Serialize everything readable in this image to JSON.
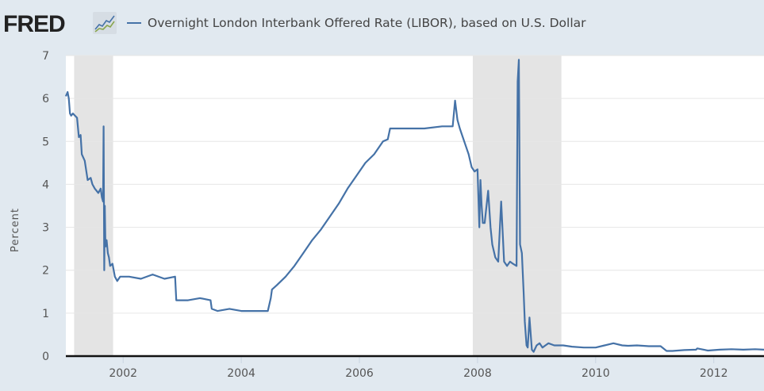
{
  "header": {
    "logo": "FRED",
    "legend_label": "Overnight London Interbank Offered Rate (LIBOR), based on U.S. Dollar",
    "series_color": "#4572a7"
  },
  "chart_data": {
    "type": "line",
    "title": "Overnight London Interbank Offered Rate (LIBOR), based on U.S. Dollar",
    "xlabel": "",
    "ylabel": "Percent",
    "ylim": [
      0,
      7
    ],
    "xlim": [
      2001.03,
      2012.85
    ],
    "yticks": [
      "0",
      "1",
      "2",
      "3",
      "4",
      "5",
      "6",
      "7"
    ],
    "xticks": [
      "2002",
      "2004",
      "2006",
      "2008",
      "2010",
      "2012"
    ],
    "grid": true,
    "legend_position": "top",
    "recessions": [
      [
        2001.17,
        2001.83
      ],
      [
        2007.92,
        2009.42
      ]
    ],
    "series": [
      {
        "name": "Overnight London Interbank Offered Rate (LIBOR), based on U.S. Dollar",
        "x": [
          2001.03,
          2001.06,
          2001.08,
          2001.1,
          2001.12,
          2001.15,
          2001.22,
          2001.25,
          2001.28,
          2001.3,
          2001.35,
          2001.4,
          2001.45,
          2001.48,
          2001.52,
          2001.55,
          2001.58,
          2001.62,
          2001.64,
          2001.66,
          2001.67,
          2001.68,
          2001.69,
          2001.7,
          2001.72,
          2001.74,
          2001.76,
          2001.78,
          2001.82,
          2001.86,
          2001.9,
          2001.95,
          2002.1,
          2002.3,
          2002.5,
          2002.7,
          2002.88,
          2002.9,
          2003.1,
          2003.3,
          2003.48,
          2003.5,
          2003.6,
          2003.8,
          2004.0,
          2004.2,
          2004.45,
          2004.5,
          2004.52,
          2004.6,
          2004.75,
          2004.9,
          2005.05,
          2005.2,
          2005.35,
          2005.5,
          2005.65,
          2005.8,
          2005.95,
          2006.1,
          2006.25,
          2006.4,
          2006.48,
          2006.52,
          2006.8,
          2007.1,
          2007.4,
          2007.58,
          2007.62,
          2007.66,
          2007.7,
          2007.75,
          2007.8,
          2007.85,
          2007.9,
          2007.95,
          2008.0,
          2008.03,
          2008.05,
          2008.07,
          2008.09,
          2008.12,
          2008.18,
          2008.22,
          2008.25,
          2008.3,
          2008.35,
          2008.4,
          2008.45,
          2008.5,
          2008.55,
          2008.6,
          2008.66,
          2008.68,
          2008.7,
          2008.72,
          2008.75,
          2008.78,
          2008.8,
          2008.83,
          2008.85,
          2008.88,
          2008.92,
          2008.95,
          2009.0,
          2009.05,
          2009.1,
          2009.15,
          2009.2,
          2009.3,
          2009.45,
          2009.6,
          2009.8,
          2010.0,
          2010.15,
          2010.3,
          2010.45,
          2010.55,
          2010.7,
          2010.9,
          2011.1,
          2011.2,
          2011.3,
          2011.5,
          2011.7,
          2011.72,
          2011.9,
          2012.1,
          2012.3,
          2012.5,
          2012.7,
          2012.85
        ],
        "values": [
          6.05,
          6.15,
          6.0,
          5.65,
          5.6,
          5.65,
          5.55,
          5.1,
          5.15,
          4.7,
          4.55,
          4.1,
          4.15,
          4.0,
          3.9,
          3.85,
          3.8,
          3.9,
          3.7,
          3.6,
          5.35,
          2.0,
          3.5,
          2.55,
          2.7,
          2.4,
          2.3,
          2.1,
          2.15,
          1.85,
          1.75,
          1.85,
          1.85,
          1.8,
          1.9,
          1.8,
          1.85,
          1.3,
          1.3,
          1.35,
          1.3,
          1.1,
          1.05,
          1.1,
          1.05,
          1.05,
          1.05,
          1.35,
          1.55,
          1.65,
          1.85,
          2.1,
          2.4,
          2.7,
          2.95,
          3.25,
          3.55,
          3.9,
          4.2,
          4.5,
          4.7,
          5.0,
          5.05,
          5.3,
          5.3,
          5.3,
          5.35,
          5.35,
          5.95,
          5.5,
          5.3,
          5.1,
          4.9,
          4.7,
          4.4,
          4.3,
          4.35,
          3.0,
          4.1,
          3.5,
          3.1,
          3.1,
          3.85,
          3.0,
          2.6,
          2.3,
          2.2,
          3.6,
          2.2,
          2.1,
          2.2,
          2.15,
          2.1,
          6.4,
          6.9,
          2.6,
          2.4,
          1.5,
          0.8,
          0.25,
          0.2,
          0.9,
          0.15,
          0.1,
          0.25,
          0.3,
          0.2,
          0.25,
          0.3,
          0.25,
          0.25,
          0.22,
          0.2,
          0.2,
          0.25,
          0.3,
          0.25,
          0.24,
          0.25,
          0.23,
          0.23,
          0.12,
          0.12,
          0.14,
          0.15,
          0.18,
          0.13,
          0.15,
          0.16,
          0.15,
          0.16,
          0.15
        ]
      }
    ]
  }
}
